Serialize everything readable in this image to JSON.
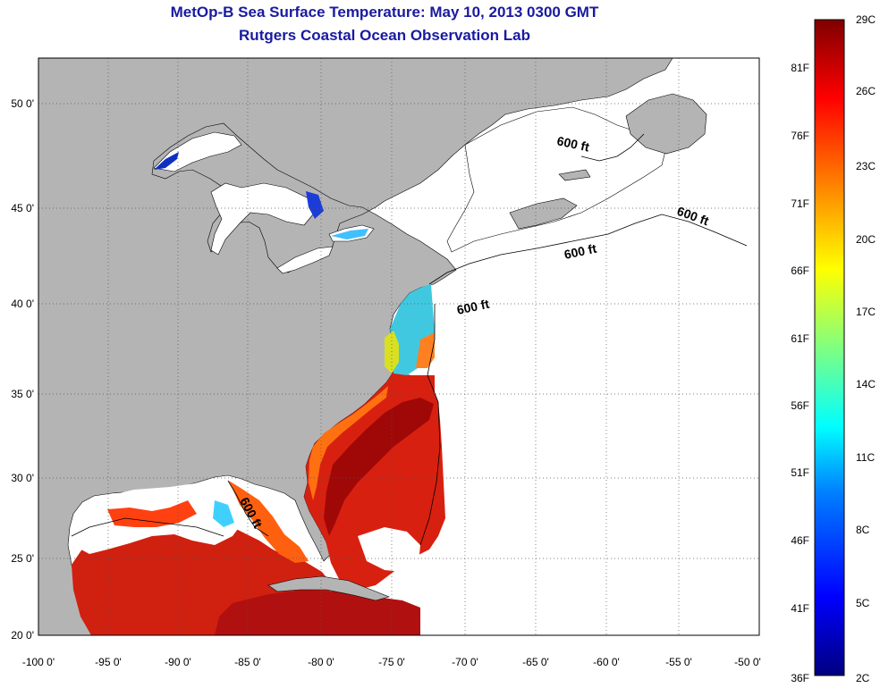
{
  "header": {
    "title": "MetOp-B Sea Surface Temperature:  May 10, 2013 0300 GMT",
    "subtitle": "Rutgers Coastal Ocean Observation Lab"
  },
  "map": {
    "lon_labels": [
      "-100 0'",
      "-95 0'",
      "-90 0'",
      "-85 0'",
      "-80 0'",
      "-75 0'",
      "-70 0'",
      "-65 0'",
      "-60 0'",
      "-55 0'",
      "-50 0'"
    ],
    "lat_labels": [
      "50 0'",
      "45 0'",
      "40 0'",
      "35 0'",
      "30 0'",
      "25 0'",
      "20 0'"
    ],
    "contour_label": "600 ft",
    "colors": {
      "land": "#b4b4b4",
      "no_data": "#ffffff",
      "grid": "#555555"
    }
  },
  "colorbar": {
    "celsius_labels": [
      "29C",
      "26C",
      "23C",
      "20C",
      "17C",
      "14C",
      "11C",
      "8C",
      "5C",
      "2C"
    ],
    "fahrenheit_labels": [
      "81F",
      "76F",
      "71F",
      "66F",
      "61F",
      "56F",
      "51F",
      "46F",
      "41F",
      "36F"
    ],
    "stops": [
      "#00007f",
      "#0000ff",
      "#0080ff",
      "#00ffff",
      "#80ff80",
      "#ffff00",
      "#ff8000",
      "#ff0000",
      "#7f0000"
    ]
  }
}
